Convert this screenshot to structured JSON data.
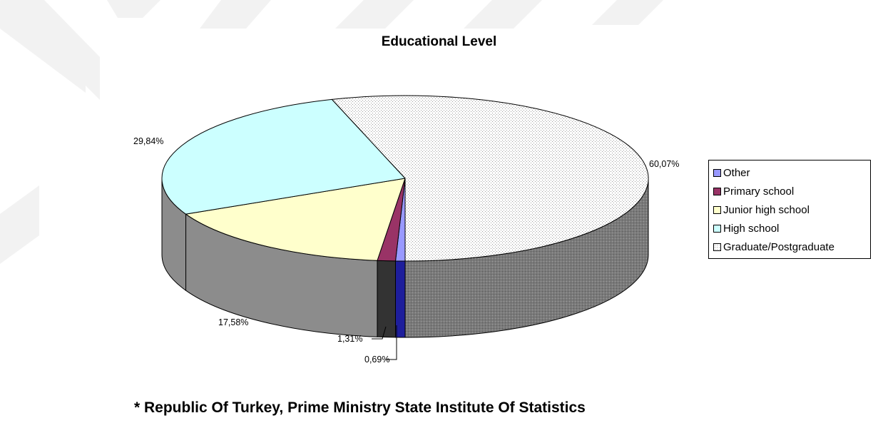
{
  "chart_data": {
    "type": "pie",
    "title": "Educational Level",
    "categories": [
      "Other",
      "Primary school",
      "Junior high school",
      "High school",
      "Graduate/Postgraduate"
    ],
    "values": [
      0.69,
      1.31,
      17.58,
      29.84,
      60.07
    ],
    "data_labels": [
      "0,69%",
      "1,31%",
      "17,58%",
      "29,84%",
      "60,07%"
    ],
    "colors": [
      "#9999ff",
      "#993366",
      "#ffffcc",
      "#ccffff",
      "#ffffff"
    ],
    "side_colors": [
      "#1e1e9c",
      "#333333",
      "#8c8c8c",
      "#8c8c8c",
      "#8c8c8c"
    ],
    "legend_position": "right",
    "style": "3d-pie"
  },
  "source_note": "* Republic Of Turkey, Prime Ministry State Institute Of Statistics"
}
